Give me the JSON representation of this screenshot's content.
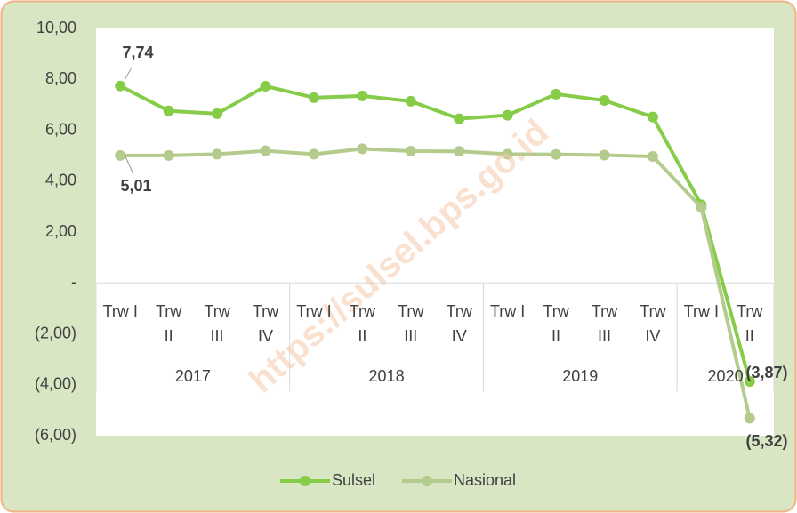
{
  "chart_data": {
    "type": "line",
    "watermark": "https://sulsel.bps.go.id",
    "categories": [
      "Trw I",
      "Trw II",
      "Trw III",
      "Trw IV",
      "Trw I",
      "Trw II",
      "Trw III",
      "Trw IV",
      "Trw I",
      "Trw II",
      "Trw III",
      "Trw IV",
      "Trw I",
      "Trw II"
    ],
    "groups": [
      {
        "label": "2017",
        "span": 4
      },
      {
        "label": "2018",
        "span": 4
      },
      {
        "label": "2019",
        "span": 4
      },
      {
        "label": "2020",
        "span": 2
      }
    ],
    "series": [
      {
        "name": "Sulsel",
        "color": "#86cc48",
        "values": [
          7.74,
          6.76,
          6.65,
          7.73,
          7.28,
          7.35,
          7.14,
          6.45,
          6.59,
          7.42,
          7.17,
          6.52,
          3.07,
          -3.87
        ],
        "value_labels": [
          "7,74",
          null,
          null,
          null,
          null,
          null,
          null,
          null,
          null,
          null,
          null,
          null,
          null,
          "(3,87)"
        ]
      },
      {
        "name": "Nasional",
        "color": "#b3cb8c",
        "values": [
          5.01,
          5.01,
          5.06,
          5.19,
          5.06,
          5.27,
          5.18,
          5.17,
          5.06,
          5.05,
          5.02,
          4.97,
          2.97,
          -5.32
        ],
        "value_labels": [
          "5,01",
          null,
          null,
          null,
          null,
          null,
          null,
          null,
          null,
          null,
          null,
          null,
          null,
          "(5,32)"
        ]
      }
    ],
    "ylim": [
      -6,
      10
    ],
    "yticks": [
      {
        "value": 10,
        "label": "10,00"
      },
      {
        "value": 8,
        "label": "8,00"
      },
      {
        "value": 6,
        "label": "6,00"
      },
      {
        "value": 4,
        "label": "4,00"
      },
      {
        "value": 2,
        "label": "2,00"
      },
      {
        "value": 0,
        "label": "-"
      },
      {
        "value": -2,
        "label": "(2,00)"
      },
      {
        "value": -4,
        "label": "(4,00)"
      },
      {
        "value": -6,
        "label": "(6,00)"
      }
    ],
    "legend": "bottom"
  }
}
